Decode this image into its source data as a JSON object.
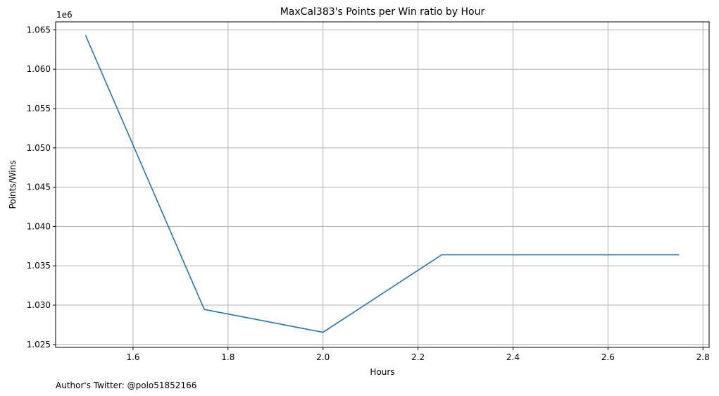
{
  "chart_data": {
    "type": "line",
    "title": "MaxCal383's Points per Win ratio by Hour",
    "xlabel": "Hours",
    "ylabel": "Points/Wins",
    "y_offset_label": "1e6",
    "y_scale_factor": 1000000,
    "footer": "Author's Twitter: @polo51852166",
    "grid": true,
    "xlim": [
      1.437,
      2.813
    ],
    "ylim": [
      1.02463,
      1.06602
    ],
    "x_ticks": [
      1.6,
      1.8,
      2.0,
      2.2,
      2.4,
      2.6,
      2.8
    ],
    "x_tick_labels": [
      "1.6",
      "1.8",
      "2.0",
      "2.2",
      "2.4",
      "2.6",
      "2.8"
    ],
    "y_ticks": [
      1.025,
      1.03,
      1.035,
      1.04,
      1.045,
      1.05,
      1.055,
      1.06,
      1.065
    ],
    "y_tick_labels": [
      "1.025",
      "1.030",
      "1.035",
      "1.040",
      "1.045",
      "1.050",
      "1.055",
      "1.060",
      "1.065"
    ],
    "series": [
      {
        "color": "#1f77b4",
        "x": [
          1.5,
          1.75,
          2.0,
          2.25,
          2.5,
          2.75
        ],
        "y": [
          1064300,
          1029450,
          1026550,
          1036400,
          1036400,
          1036400
        ]
      }
    ]
  }
}
